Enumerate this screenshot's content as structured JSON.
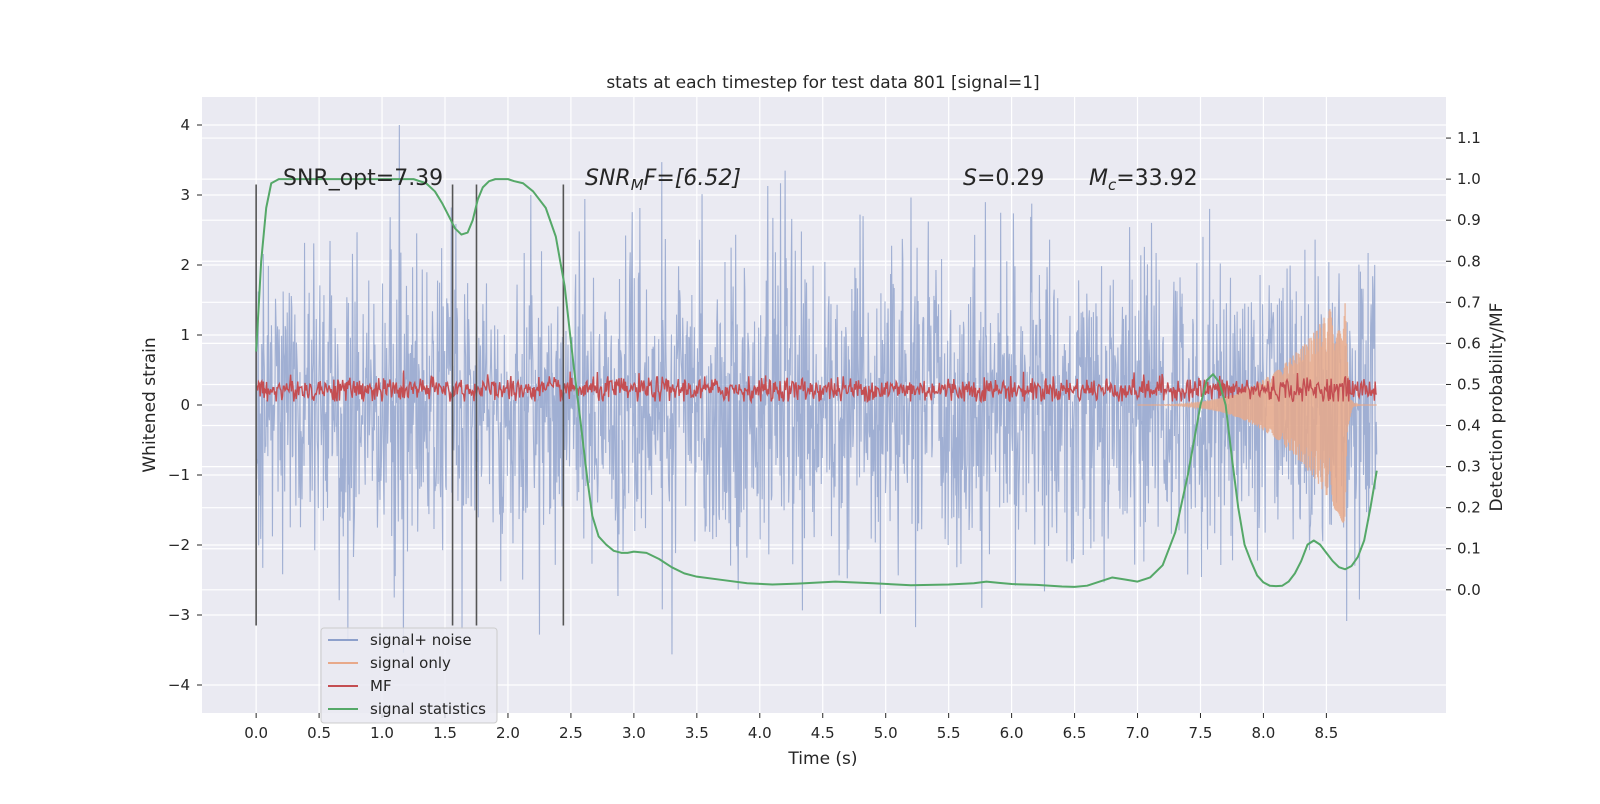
{
  "chart_data": {
    "type": "line",
    "title": "stats at each timestep for test data 801 [signal=1]",
    "xlabel": "Time (s)",
    "ylabel": "Whitened strain",
    "y2label": "Detection probability/MF",
    "xlim": [
      -0.43,
      9.45
    ],
    "ylim": [
      -4.4,
      4.4
    ],
    "y2lim": [
      -0.3,
      1.2
    ],
    "x_ticks": [
      0.0,
      0.5,
      1.0,
      1.5,
      2.0,
      2.5,
      3.0,
      3.5,
      4.0,
      4.5,
      5.0,
      5.5,
      6.0,
      6.5,
      7.0,
      7.5,
      8.0,
      8.5
    ],
    "x_tick_labels": [
      "0.0",
      "0.5",
      "1.0",
      "1.5",
      "2.0",
      "2.5",
      "3.0",
      "3.5",
      "4.0",
      "4.5",
      "5.0",
      "5.5",
      "6.0",
      "6.5",
      "7.0",
      "7.5",
      "8.0",
      "8.5"
    ],
    "y_ticks": [
      -4,
      -3,
      -2,
      -1,
      0,
      1,
      2,
      3,
      4
    ],
    "y_tick_labels": [
      "−4",
      "−3",
      "−2",
      "−1",
      "0",
      "1",
      "2",
      "3",
      "4"
    ],
    "y2_ticks": [
      0.0,
      0.1,
      0.2,
      0.3,
      0.4,
      0.5,
      0.6,
      0.7,
      0.8,
      0.9,
      1.0,
      1.1
    ],
    "y2_tick_labels": [
      "0.0",
      "0.1",
      "0.2",
      "0.3",
      "0.4",
      "0.5",
      "0.6",
      "0.7",
      "0.8",
      "0.9",
      "1.0",
      "1.1"
    ],
    "grid": true,
    "legend_position": "lower-left",
    "legend": [
      {
        "label": "signal+ noise",
        "color": "#8da0cb"
      },
      {
        "label": "signal only",
        "color": "#e8a98a"
      },
      {
        "label": "MF",
        "color": "#c44e52"
      },
      {
        "label": "signal statistics",
        "color": "#55a868"
      }
    ],
    "annotations": {
      "snr_opt_label": "SNR_opt=7.39",
      "snr_mf_prefix": "SNR",
      "snr_mf_sub": "M",
      "snr_mf_suffix": "F=[6.52]",
      "s_symbol": "S",
      "s_value": "=0.29",
      "mc_symbol": "M",
      "mc_sub": "c",
      "mc_value": "=33.92"
    },
    "vertical_markers_s": [
      0.0,
      1.56,
      1.75,
      2.44
    ],
    "series": {
      "signal_noise": {
        "name": "signal+ noise",
        "color": "#8da0cb",
        "t_start": 0.0,
        "t_end": 8.9,
        "typical_amplitude": 1.3,
        "y_max": 4.0,
        "y_min": -4.0
      },
      "signal_only": {
        "name": "signal only",
        "color": "#e8a98a",
        "t_start": 7.0,
        "peak_time": 8.65,
        "peak_amplitude": 1.75,
        "t_end": 8.9
      },
      "mf": {
        "name": "MF",
        "color": "#c44e52",
        "t_start": 0.0,
        "t_end": 8.9,
        "mean": 0.22,
        "range": [
          0.05,
          0.55
        ]
      },
      "signal_statistics": {
        "name": "signal statistics",
        "color": "#55a868",
        "axis": "right",
        "t": [
          0.0,
          0.04,
          0.08,
          0.12,
          0.18,
          0.25,
          0.35,
          0.5,
          0.7,
          0.9,
          1.1,
          1.25,
          1.35,
          1.42,
          1.48,
          1.53,
          1.58,
          1.63,
          1.68,
          1.72,
          1.76,
          1.8,
          1.85,
          1.9,
          1.95,
          2.0,
          2.05,
          2.12,
          2.2,
          2.3,
          2.38,
          2.45,
          2.52,
          2.58,
          2.63,
          2.67,
          2.72,
          2.78,
          2.84,
          2.9,
          2.95,
          3.0,
          3.1,
          3.2,
          3.3,
          3.4,
          3.5,
          3.7,
          3.9,
          4.1,
          4.3,
          4.6,
          4.9,
          5.2,
          5.5,
          5.7,
          5.8,
          5.9,
          6.0,
          6.2,
          6.4,
          6.5,
          6.6,
          6.7,
          6.8,
          6.9,
          7.0,
          7.1,
          7.2,
          7.3,
          7.4,
          7.5,
          7.55,
          7.6,
          7.65,
          7.7,
          7.75,
          7.8,
          7.85,
          7.9,
          7.95,
          8.0,
          8.05,
          8.1,
          8.15,
          8.2,
          8.25,
          8.3,
          8.35,
          8.4,
          8.45,
          8.5,
          8.55,
          8.6,
          8.65,
          8.7,
          8.75,
          8.8,
          8.85,
          8.9
        ],
        "values": [
          0.58,
          0.8,
          0.93,
          0.99,
          1.0,
          1.0,
          1.0,
          1.0,
          1.0,
          1.0,
          1.0,
          1.0,
          0.99,
          0.97,
          0.94,
          0.91,
          0.88,
          0.865,
          0.87,
          0.9,
          0.95,
          0.98,
          0.995,
          1.0,
          1.0,
          1.0,
          0.995,
          0.99,
          0.97,
          0.93,
          0.86,
          0.74,
          0.55,
          0.4,
          0.27,
          0.18,
          0.13,
          0.11,
          0.095,
          0.09,
          0.09,
          0.093,
          0.09,
          0.075,
          0.055,
          0.04,
          0.032,
          0.024,
          0.016,
          0.013,
          0.015,
          0.02,
          0.016,
          0.011,
          0.013,
          0.016,
          0.02,
          0.017,
          0.014,
          0.012,
          0.008,
          0.007,
          0.01,
          0.02,
          0.03,
          0.025,
          0.02,
          0.03,
          0.06,
          0.14,
          0.28,
          0.45,
          0.51,
          0.525,
          0.505,
          0.45,
          0.32,
          0.2,
          0.11,
          0.07,
          0.035,
          0.018,
          0.01,
          0.009,
          0.01,
          0.02,
          0.04,
          0.07,
          0.11,
          0.12,
          0.11,
          0.09,
          0.07,
          0.055,
          0.05,
          0.058,
          0.08,
          0.12,
          0.2,
          0.29
        ]
      }
    }
  }
}
